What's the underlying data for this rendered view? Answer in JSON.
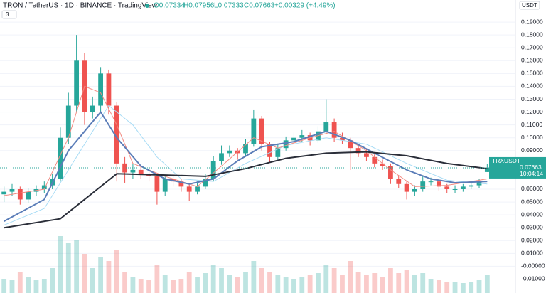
{
  "header": {
    "symbol": "TRON / TetherUS · 1D · BINANCE · TradingView",
    "open": "O0.07334",
    "high": "H0.07956",
    "low": "L0.07333",
    "close": "C0.07663",
    "change": "+0.00329 (+4.49%)",
    "indicators": "3",
    "currency": "USDT"
  },
  "chart_data": {
    "type": "candlestick",
    "up_color": "#26a69a",
    "down_color": "#ef5350",
    "xlim": [
      -0.5,
      63.5
    ],
    "ylim": [
      -0.0208,
      0.2072
    ],
    "yticks": [
      {
        "value": 0.19,
        "label": "0.19000"
      },
      {
        "value": 0.18,
        "label": "0.18000"
      },
      {
        "value": 0.17,
        "label": "0.17000"
      },
      {
        "value": 0.16,
        "label": "0.16000"
      },
      {
        "value": 0.15,
        "label": "0.15000"
      },
      {
        "value": 0.14,
        "label": "0.14000"
      },
      {
        "value": 0.13,
        "label": "0.13000"
      },
      {
        "value": 0.12,
        "label": "0.12000"
      },
      {
        "value": 0.11,
        "label": "0.11000"
      },
      {
        "value": 0.1,
        "label": "0.10000"
      },
      {
        "value": 0.09,
        "label": "0.09000"
      },
      {
        "value": 0.06,
        "label": "0.06000"
      },
      {
        "value": 0.05,
        "label": "0.05000"
      },
      {
        "value": 0.04,
        "label": "0.04000"
      },
      {
        "value": 0.03,
        "label": "0.03000"
      },
      {
        "value": 0.02,
        "label": "0.02000"
      },
      {
        "value": 0.01,
        "label": "0.01000"
      },
      {
        "value": 0,
        "label": "-0.00000"
      },
      {
        "value": -0.01,
        "label": "-0.01000"
      }
    ],
    "grid": true,
    "candles": [
      [
        0.056,
        0.062,
        0.05,
        0.058
      ],
      [
        0.058,
        0.064,
        0.055,
        0.06
      ],
      [
        0.06,
        0.062,
        0.048,
        0.052
      ],
      [
        0.052,
        0.061,
        0.049,
        0.058
      ],
      [
        0.058,
        0.063,
        0.055,
        0.06
      ],
      [
        0.06,
        0.066,
        0.057,
        0.063
      ],
      [
        0.063,
        0.072,
        0.06,
        0.068
      ],
      [
        0.068,
        0.108,
        0.066,
        0.1
      ],
      [
        0.1,
        0.135,
        0.095,
        0.125
      ],
      [
        0.125,
        0.18,
        0.12,
        0.16
      ],
      [
        0.16,
        0.166,
        0.11,
        0.12
      ],
      [
        0.12,
        0.132,
        0.115,
        0.125
      ],
      [
        0.125,
        0.155,
        0.12,
        0.15
      ],
      [
        0.15,
        0.153,
        0.118,
        0.125
      ],
      [
        0.125,
        0.128,
        0.066,
        0.08
      ],
      [
        0.08,
        0.085,
        0.065,
        0.073
      ],
      [
        0.073,
        0.08,
        0.068,
        0.075
      ],
      [
        0.075,
        0.078,
        0.068,
        0.072
      ],
      [
        0.072,
        0.076,
        0.066,
        0.07
      ],
      [
        0.07,
        0.072,
        0.048,
        0.058
      ],
      [
        0.058,
        0.071,
        0.055,
        0.068
      ],
      [
        0.068,
        0.072,
        0.062,
        0.066
      ],
      [
        0.066,
        0.068,
        0.058,
        0.062
      ],
      [
        0.062,
        0.064,
        0.051,
        0.058
      ],
      [
        0.058,
        0.066,
        0.056,
        0.062
      ],
      [
        0.062,
        0.072,
        0.06,
        0.068
      ],
      [
        0.068,
        0.086,
        0.066,
        0.082
      ],
      [
        0.082,
        0.094,
        0.079,
        0.088
      ],
      [
        0.088,
        0.094,
        0.085,
        0.09
      ],
      [
        0.09,
        0.092,
        0.083,
        0.088
      ],
      [
        0.088,
        0.099,
        0.086,
        0.095
      ],
      [
        0.095,
        0.122,
        0.093,
        0.115
      ],
      [
        0.115,
        0.117,
        0.09,
        0.095
      ],
      [
        0.095,
        0.097,
        0.081,
        0.085
      ],
      [
        0.085,
        0.095,
        0.083,
        0.092
      ],
      [
        0.092,
        0.101,
        0.09,
        0.098
      ],
      [
        0.098,
        0.104,
        0.095,
        0.1
      ],
      [
        0.1,
        0.106,
        0.097,
        0.102
      ],
      [
        0.102,
        0.104,
        0.094,
        0.098
      ],
      [
        0.098,
        0.109,
        0.096,
        0.105
      ],
      [
        0.105,
        0.13,
        0.103,
        0.112
      ],
      [
        0.112,
        0.115,
        0.097,
        0.1
      ],
      [
        0.1,
        0.104,
        0.095,
        0.098
      ],
      [
        0.098,
        0.1,
        0.075,
        0.092
      ],
      [
        0.092,
        0.095,
        0.085,
        0.088
      ],
      [
        0.088,
        0.091,
        0.082,
        0.085
      ],
      [
        0.085,
        0.087,
        0.077,
        0.08
      ],
      [
        0.08,
        0.083,
        0.075,
        0.078
      ],
      [
        0.078,
        0.08,
        0.064,
        0.068
      ],
      [
        0.068,
        0.071,
        0.061,
        0.064
      ],
      [
        0.064,
        0.066,
        0.052,
        0.058
      ],
      [
        0.058,
        0.063,
        0.055,
        0.06
      ],
      [
        0.06,
        0.07,
        0.058,
        0.066
      ],
      [
        0.066,
        0.069,
        0.063,
        0.066
      ],
      [
        0.066,
        0.068,
        0.059,
        0.062
      ],
      [
        0.062,
        0.064,
        0.057,
        0.06
      ],
      [
        0.06,
        0.063,
        0.057,
        0.06
      ],
      [
        0.06,
        0.064,
        0.058,
        0.062
      ],
      [
        0.062,
        0.065,
        0.06,
        0.063
      ],
      [
        0.063,
        0.068,
        0.061,
        0.066
      ],
      [
        0.07334,
        0.07956,
        0.07333,
        0.07663
      ]
    ],
    "volume": [
      20,
      18,
      30,
      22,
      18,
      20,
      35,
      80,
      70,
      75,
      55,
      35,
      50,
      45,
      60,
      30,
      22,
      20,
      18,
      40,
      25,
      18,
      20,
      30,
      22,
      28,
      40,
      35,
      25,
      22,
      30,
      45,
      35,
      30,
      25,
      22,
      20,
      22,
      25,
      28,
      40,
      35,
      25,
      45,
      30,
      25,
      28,
      22,
      35,
      28,
      32,
      25,
      28,
      20,
      18,
      15,
      16,
      14,
      15,
      18,
      25
    ],
    "volume_lim": [
      0,
      100
    ],
    "lines": [
      {
        "color": "#a8dcf5",
        "width": 1,
        "x": [
          0,
          5,
          10,
          13,
          16,
          19,
          22,
          26,
          30,
          35,
          40,
          45,
          50,
          55,
          60
        ],
        "values": [
          0.032,
          0.045,
          0.095,
          0.125,
          0.11,
          0.085,
          0.068,
          0.066,
          0.08,
          0.094,
          0.1,
          0.095,
          0.08,
          0.067,
          0.064
        ]
      },
      {
        "color": "#f28b82",
        "width": 1,
        "x": [
          0,
          5,
          8,
          10,
          12,
          14,
          16,
          20,
          24,
          27,
          31,
          34,
          38,
          41,
          45,
          48,
          51,
          55,
          60
        ],
        "values": [
          0.055,
          0.06,
          0.1,
          0.14,
          0.135,
          0.11,
          0.08,
          0.07,
          0.062,
          0.078,
          0.1,
          0.092,
          0.1,
          0.105,
          0.09,
          0.075,
          0.062,
          0.063,
          0.068
        ]
      },
      {
        "color": "#5b7db8",
        "width": 2,
        "x": [
          0,
          5,
          8,
          10,
          12,
          14,
          17,
          20,
          23,
          26,
          29,
          32,
          36,
          40,
          43,
          46,
          50,
          53,
          56,
          60
        ],
        "values": [
          0.035,
          0.052,
          0.09,
          0.105,
          0.12,
          0.1,
          0.078,
          0.068,
          0.064,
          0.068,
          0.082,
          0.093,
          0.097,
          0.105,
          0.098,
          0.088,
          0.075,
          0.068,
          0.065,
          0.066
        ]
      },
      {
        "color": "#2a2e39",
        "width": 2,
        "x": [
          0,
          7,
          10,
          14,
          20,
          25,
          30,
          35,
          40,
          45,
          50,
          55,
          60
        ],
        "values": [
          0.03,
          0.037,
          0.052,
          0.072,
          0.071,
          0.07,
          0.076,
          0.084,
          0.088,
          0.089,
          0.086,
          0.08,
          0.076
        ]
      }
    ],
    "last_price": 0.07663,
    "last_symbol": "TRXUSDT",
    "countdown": "10:04:14"
  }
}
